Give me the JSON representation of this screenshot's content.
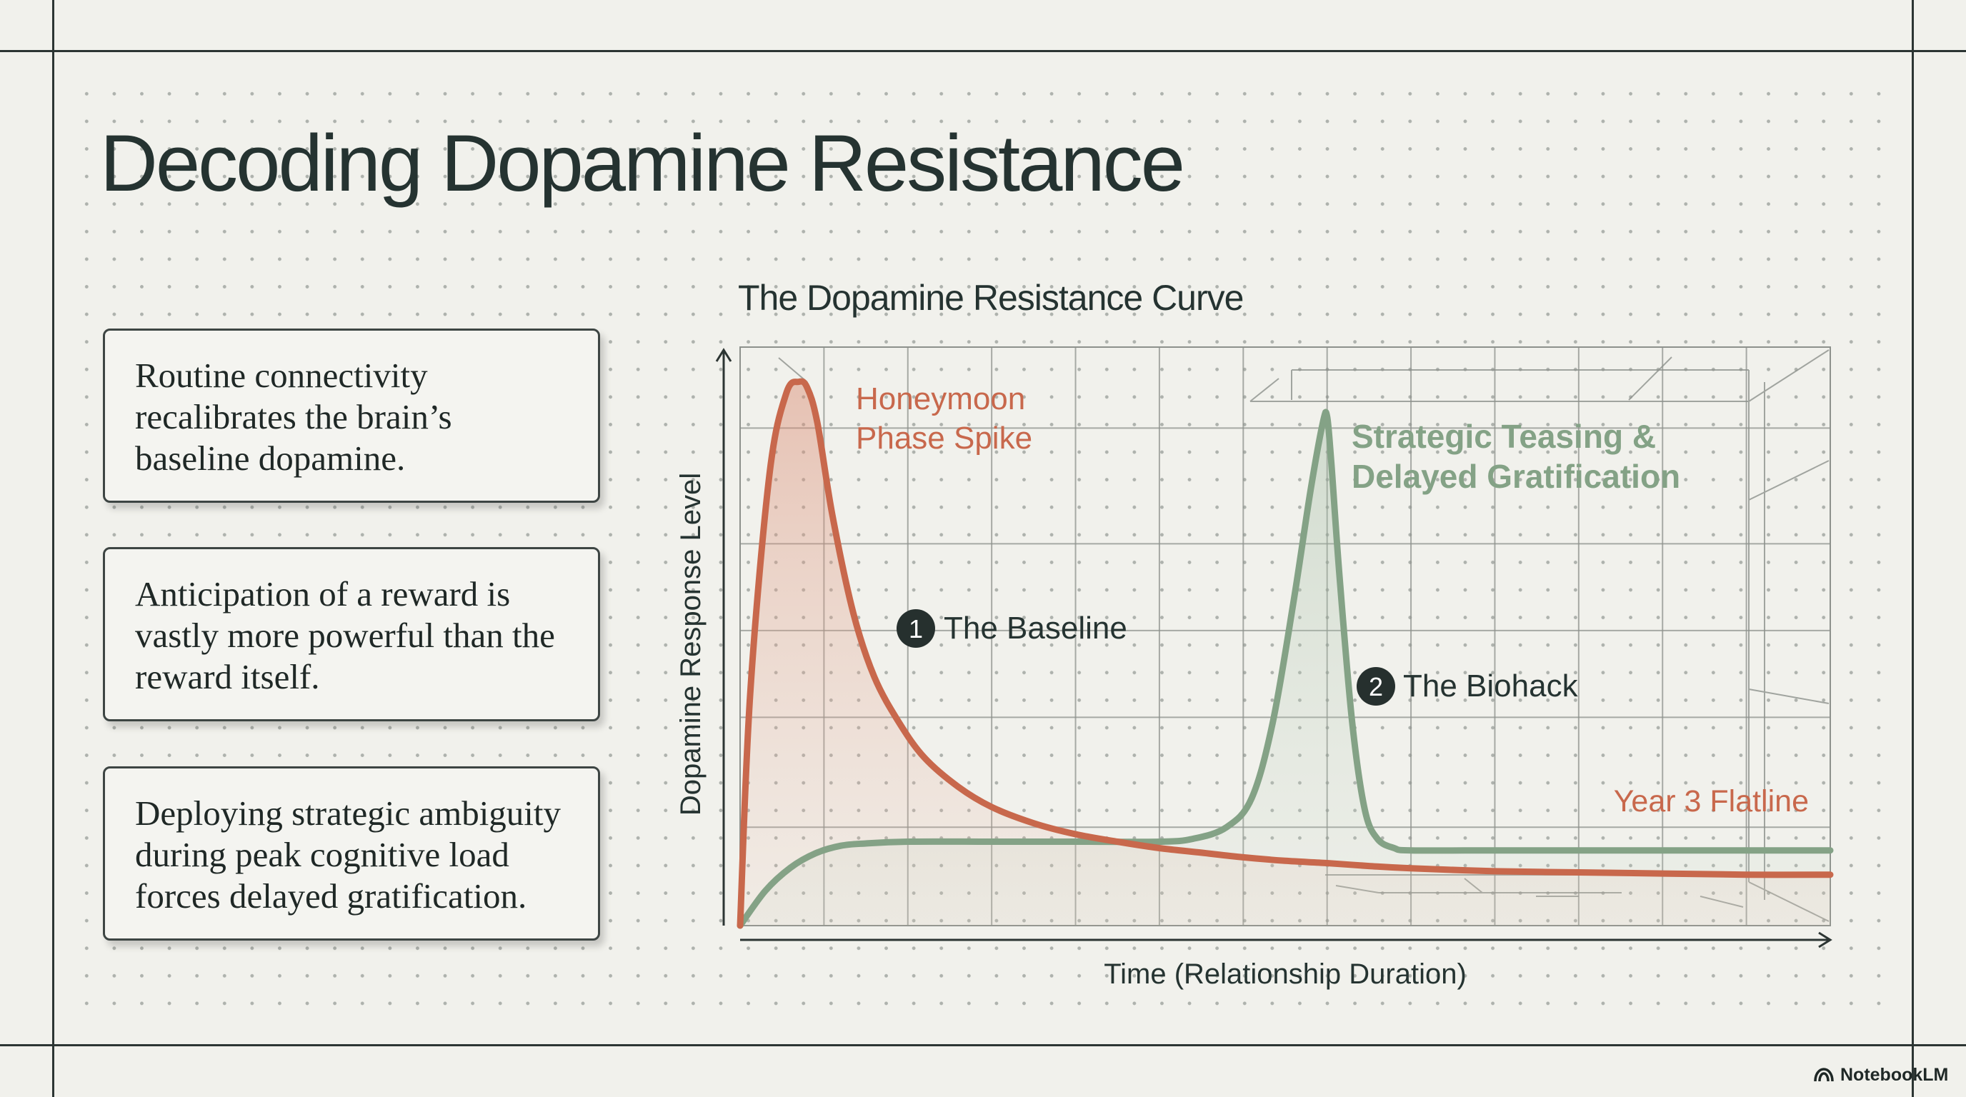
{
  "page": {
    "title": "Decoding Dopamine Resistance",
    "cards": [
      "Routine connectivity recalibrates the brain’s baseline dopamine.",
      "Anticipation of a reward is vastly more powerful than the reward itself.",
      "Deploying strategic ambiguity during peak cognitive load forces delayed gratification."
    ],
    "brand": {
      "label": "NotebookLM",
      "icon": "notebooklm-logo-icon"
    }
  },
  "colors": {
    "honeymoon": "#c8684c",
    "biohack": "#84a286",
    "text": "#253331",
    "grid": "#8d918c"
  },
  "chart_data": {
    "type": "line",
    "title": "The Dopamine Resistance Curve",
    "xlabel": "Time (Relationship Duration)",
    "ylabel": "Dopamine Response Level",
    "xlim": [
      0,
      13
    ],
    "ylim": [
      0,
      100
    ],
    "grid": true,
    "ticks_shown": false,
    "series": [
      {
        "key": "honeymoon",
        "color": "#c8684c",
        "filled": true,
        "x": [
          0,
          0.12,
          0.35,
          0.55,
          0.7,
          0.8,
          0.92,
          1.1,
          1.35,
          1.6,
          1.9,
          2.2,
          2.6,
          3.0,
          3.5,
          4.0,
          4.5,
          5.0,
          5.5,
          6.0,
          6.5,
          7.0,
          7.5,
          8.0,
          9.0,
          10.0,
          11.0,
          12.0,
          13.0
        ],
        "y": [
          0,
          40,
          78,
          92,
          94,
          93,
          87,
          71,
          54,
          43,
          35,
          29,
          24,
          20.5,
          17.7,
          15.8,
          14.5,
          13.4,
          12.6,
          11.8,
          11.2,
          10.8,
          10.3,
          9.9,
          9.4,
          9.2,
          9.0,
          8.8,
          8.8
        ]
      },
      {
        "key": "biohack",
        "color": "#84a286",
        "filled": true,
        "x": [
          0,
          0.3,
          0.6,
          0.9,
          1.2,
          1.5,
          2.0,
          3.0,
          4.0,
          5.0,
          5.4,
          5.8,
          6.1,
          6.35,
          6.6,
          6.8,
          6.95,
          7.0,
          7.05,
          7.15,
          7.3,
          7.45,
          7.6,
          7.8,
          8.0,
          9.0,
          10.0,
          11.0,
          12.0,
          13.0
        ],
        "y": [
          0,
          6,
          10,
          12.5,
          13.8,
          14.2,
          14.5,
          14.5,
          14.5,
          14.5,
          15,
          17,
          22,
          35,
          56,
          75,
          87,
          88,
          80,
          60,
          35,
          20,
          15,
          13.4,
          13,
          13,
          13,
          13,
          13,
          13
        ]
      }
    ],
    "annotations": [
      {
        "series": "honeymoon",
        "text": "Honeymoon Phase Spike",
        "lines": [
          "Honeymoon",
          "Phase Spike"
        ]
      },
      {
        "series": "biohack",
        "text": "Strategic Teasing & Delayed Gratification",
        "lines": [
          "Strategic Teasing &",
          "Delayed Gratification"
        ]
      },
      {
        "series": "honeymoon",
        "text": "Year 3 Flatline"
      },
      {
        "marker": "1",
        "text": "The Baseline"
      },
      {
        "marker": "2",
        "text": "The Biohack"
      }
    ]
  }
}
